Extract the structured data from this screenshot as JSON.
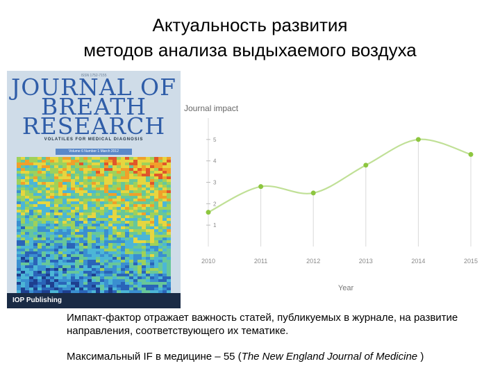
{
  "slide": {
    "title_line1": "Актуальность развития",
    "title_line2": "методов анализа выдыхаемого воздуха",
    "caption1": "Импакт-фактор отражает важность статей, публикуемых в журнале, на развитие направления, соответствующего их тематике.",
    "caption2_prefix": "Максимальный IF в медицине – 55 (",
    "caption2_journal": "The New England Journal of Medicine",
    "caption2_suffix": " )"
  },
  "cover": {
    "issn": "ISSN 1752-7155",
    "journal_line1": "JOURNAL OF",
    "journal_line2": "BREATH",
    "journal_line3": "RESEARCH",
    "subtitle": "VOLATILES FOR MEDICAL DIAGNOSIS",
    "volume": "Volume 6 Number 1 March 2012",
    "publisher": "IOP Publishing",
    "colors": {
      "title": "#2f5da8",
      "footer": "#1a2b45"
    }
  },
  "chart_data": {
    "type": "line",
    "title": "Journal impact",
    "xlabel": "Year",
    "ylabel": "",
    "x": [
      2010,
      2011,
      2012,
      2013,
      2014,
      2015
    ],
    "x_tick_labels": [
      "2010",
      "2011",
      "2012",
      "2013",
      "2014",
      "2015"
    ],
    "y_ticks": [
      1,
      2,
      3,
      4,
      5
    ],
    "y_tick_labels": [
      "1",
      "2",
      "3",
      "4",
      "5"
    ],
    "ylim": [
      0,
      6
    ],
    "series": [
      {
        "values": [
          1.6,
          2.8,
          2.5,
          3.8,
          5.0,
          4.3
        ],
        "color": "#8dc63f"
      }
    ],
    "grid": "vertical",
    "grid_color": "#d8d8d8",
    "axis_text_color": "#888888"
  }
}
